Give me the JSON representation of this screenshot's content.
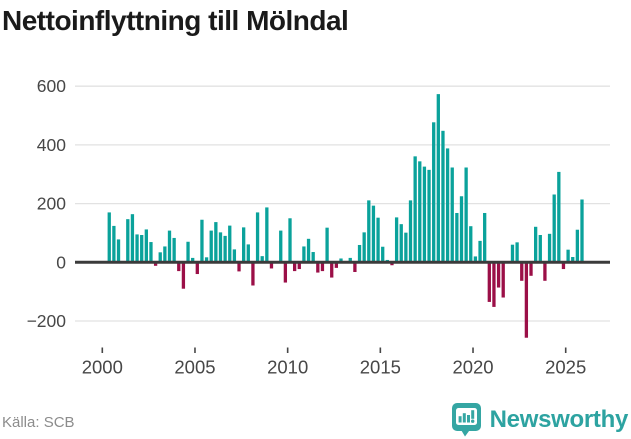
{
  "title": "Nettoinflyttning till Mölndal",
  "source": "Källa: SCB",
  "brand": {
    "name": "Newsworthy"
  },
  "colors": {
    "positive": "#0aa29b",
    "negative": "#9b0f47",
    "grid": "#e2e2e2",
    "zero_line": "#3b3b3b",
    "axis_text": "#474747",
    "title_text": "#1a1a1a",
    "source_text": "#8c8c8c",
    "brand_teal": "#2da3a1",
    "logo_badge": "#35a6a3"
  },
  "chart_data": {
    "type": "bar",
    "title": "Nettoinflyttning till Mölndal",
    "subtitle": "",
    "xlabel": "",
    "ylabel": "",
    "period": "quarterly",
    "start_year": 2000,
    "x_ticks": [
      2000,
      2005,
      2010,
      2015,
      2020,
      2025
    ],
    "y_ticks": [
      600,
      400,
      200,
      0,
      -200
    ],
    "ylim": [
      -290,
      660
    ],
    "grid": true,
    "legend": "none",
    "series_name": "Nettoinflyttning per kvartal",
    "values": [
      0,
      170,
      124,
      78,
      0,
      147,
      164,
      95,
      93,
      112,
      69,
      -12,
      34,
      54,
      108,
      83,
      -30,
      -90,
      70,
      15,
      -40,
      145,
      17,
      108,
      137,
      102,
      90,
      125,
      44,
      -31,
      119,
      61,
      -79,
      170,
      21,
      187,
      -21,
      0,
      108,
      -69,
      150,
      -30,
      -23,
      54,
      80,
      35,
      -35,
      -30,
      118,
      -52,
      -19,
      13,
      0,
      15,
      -33,
      59,
      102,
      211,
      193,
      152,
      53,
      8,
      -10,
      153,
      130,
      101,
      211,
      361,
      344,
      326,
      315,
      477,
      573,
      448,
      388,
      323,
      168,
      225,
      323,
      123,
      20,
      73,
      168,
      -135,
      -152,
      -86,
      -120,
      0,
      60,
      68,
      -63,
      -257,
      -46,
      121,
      93,
      -63,
      97,
      231,
      308,
      -23,
      43,
      18,
      111,
      214
    ]
  }
}
